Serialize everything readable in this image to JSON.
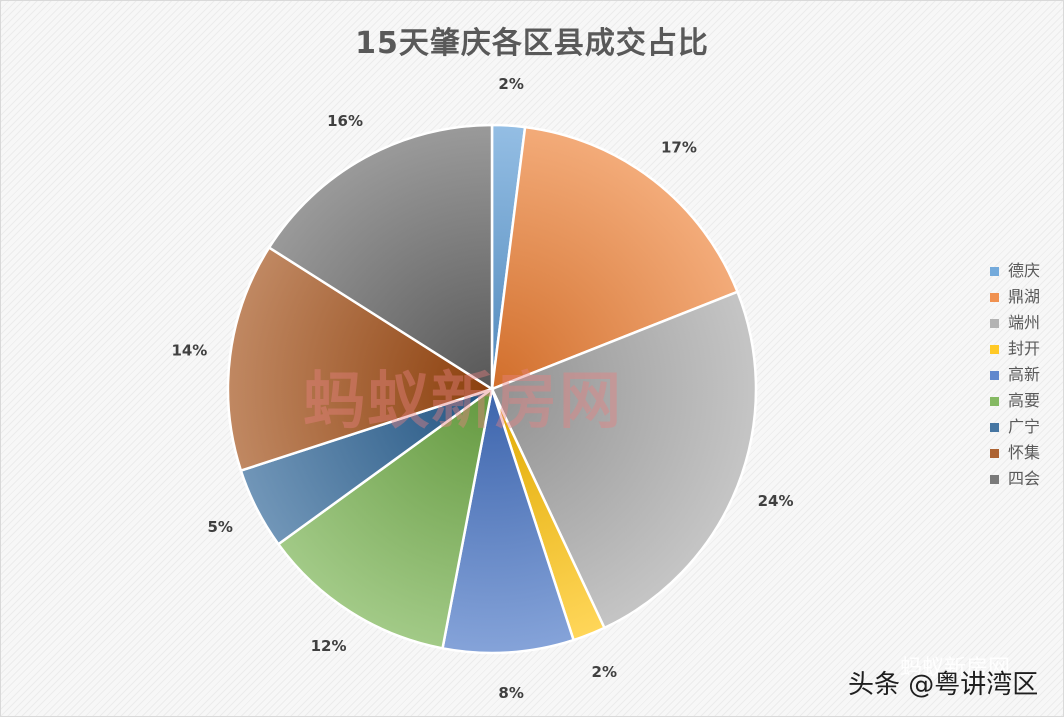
{
  "chart_data": {
    "type": "pie",
    "title": "15天肇庆各区县成交占比",
    "categories": [
      "德庆",
      "鼎湖",
      "端州",
      "封开",
      "高新",
      "高要",
      "广宁",
      "怀集",
      "四会"
    ],
    "values": [
      2,
      17,
      24,
      2,
      8,
      12,
      5,
      14,
      16
    ],
    "labels": [
      "2%",
      "17%",
      "24%",
      "2%",
      "8%",
      "12%",
      "5%",
      "14%",
      "16%"
    ],
    "colors": [
      "#5b9bd5",
      "#ed7d31",
      "#a5a5a5",
      "#ffc000",
      "#4472c4",
      "#70ad47",
      "#255e91",
      "#9e480e",
      "#636363"
    ],
    "legend_position": "right"
  },
  "watermark": "蚂蚁新房网",
  "footer": {
    "attribution": "头条 @粤讲湾区",
    "ghost": "蚂蚁新房网"
  }
}
